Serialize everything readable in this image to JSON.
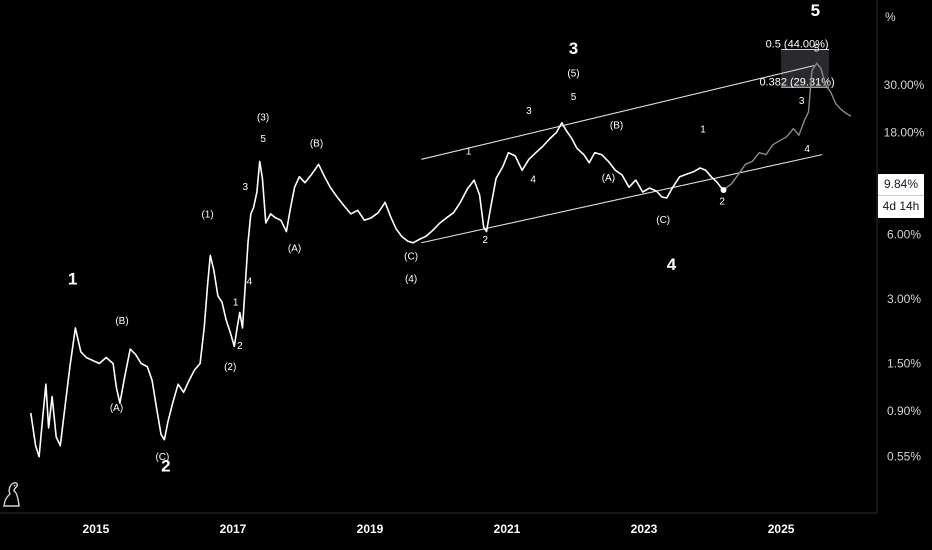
{
  "scale_unit": "%",
  "last_value": "9.84%",
  "countdown": "4d 14h",
  "colors": {
    "background": "#000000",
    "price_line": "#ffffff",
    "projection_line": "#8a8a8a",
    "fib_zone": "#2a2a2e"
  },
  "chart_data": {
    "type": "line",
    "title": "",
    "xlabel": "",
    "ylabel": "",
    "y_scale": "log",
    "grid": false,
    "x_ticks": [
      "2015",
      "2017",
      "2019",
      "2021",
      "2023",
      "2025"
    ],
    "y_ticks": [
      "30.00%",
      "18.00%",
      "6.00%",
      "3.00%",
      "1.50%",
      "0.90%",
      "0.55%"
    ],
    "x_range": [
      2013.6,
      2026.4
    ],
    "y_range": [
      0.3,
      75
    ],
    "series": [
      {
        "style": "solid",
        "points": [
          [
            2014.05,
            0.88
          ],
          [
            2014.12,
            0.62
          ],
          [
            2014.17,
            0.55
          ],
          [
            2014.22,
            0.82
          ],
          [
            2014.27,
            1.2
          ],
          [
            2014.31,
            0.75
          ],
          [
            2014.36,
            1.05
          ],
          [
            2014.42,
            0.68
          ],
          [
            2014.48,
            0.62
          ],
          [
            2014.55,
            0.95
          ],
          [
            2014.62,
            1.45
          ],
          [
            2014.7,
            2.2
          ],
          [
            2014.78,
            1.7
          ],
          [
            2014.86,
            1.6
          ],
          [
            2014.95,
            1.55
          ],
          [
            2015.05,
            1.5
          ],
          [
            2015.15,
            1.6
          ],
          [
            2015.25,
            1.5
          ],
          [
            2015.3,
            1.15
          ],
          [
            2015.35,
            0.98
          ],
          [
            2015.42,
            1.3
          ],
          [
            2015.5,
            1.75
          ],
          [
            2015.58,
            1.65
          ],
          [
            2015.66,
            1.5
          ],
          [
            2015.75,
            1.45
          ],
          [
            2015.82,
            1.25
          ],
          [
            2015.88,
            0.95
          ],
          [
            2015.95,
            0.7
          ],
          [
            2016.0,
            0.66
          ],
          [
            2016.05,
            0.8
          ],
          [
            2016.12,
            0.98
          ],
          [
            2016.2,
            1.2
          ],
          [
            2016.28,
            1.1
          ],
          [
            2016.36,
            1.25
          ],
          [
            2016.44,
            1.4
          ],
          [
            2016.52,
            1.5
          ],
          [
            2016.58,
            2.2
          ],
          [
            2016.63,
            3.5
          ],
          [
            2016.67,
            4.8
          ],
          [
            2016.72,
            4.1
          ],
          [
            2016.78,
            3.1
          ],
          [
            2016.84,
            2.9
          ],
          [
            2016.9,
            2.4
          ],
          [
            2016.96,
            2.1
          ],
          [
            2017.02,
            1.8
          ],
          [
            2017.06,
            2.2
          ],
          [
            2017.1,
            2.6
          ],
          [
            2017.14,
            2.2
          ],
          [
            2017.18,
            3.5
          ],
          [
            2017.22,
            5.5
          ],
          [
            2017.26,
            7.5
          ],
          [
            2017.3,
            8.0
          ],
          [
            2017.35,
            9.5
          ],
          [
            2017.39,
            13.2
          ],
          [
            2017.43,
            11.0
          ],
          [
            2017.48,
            6.8
          ],
          [
            2017.55,
            7.5
          ],
          [
            2017.62,
            7.2
          ],
          [
            2017.7,
            7.0
          ],
          [
            2017.78,
            6.2
          ],
          [
            2017.84,
            8.0
          ],
          [
            2017.9,
            10.0
          ],
          [
            2017.97,
            11.2
          ],
          [
            2018.05,
            10.5
          ],
          [
            2018.15,
            11.5
          ],
          [
            2018.25,
            12.8
          ],
          [
            2018.33,
            11.3
          ],
          [
            2018.42,
            10.0
          ],
          [
            2018.52,
            9.0
          ],
          [
            2018.62,
            8.2
          ],
          [
            2018.72,
            7.5
          ],
          [
            2018.82,
            7.8
          ],
          [
            2018.92,
            7.0
          ],
          [
            2019.02,
            7.2
          ],
          [
            2019.12,
            7.6
          ],
          [
            2019.22,
            8.5
          ],
          [
            2019.3,
            7.3
          ],
          [
            2019.38,
            6.4
          ],
          [
            2019.46,
            5.9
          ],
          [
            2019.55,
            5.6
          ],
          [
            2019.63,
            5.5
          ],
          [
            2019.72,
            5.7
          ],
          [
            2019.82,
            5.9
          ],
          [
            2019.92,
            6.3
          ],
          [
            2020.02,
            6.8
          ],
          [
            2020.12,
            7.2
          ],
          [
            2020.22,
            7.6
          ],
          [
            2020.32,
            8.5
          ],
          [
            2020.42,
            9.8
          ],
          [
            2020.52,
            10.8
          ],
          [
            2020.6,
            9.2
          ],
          [
            2020.66,
            6.5
          ],
          [
            2020.7,
            6.2
          ],
          [
            2020.76,
            8.0
          ],
          [
            2020.84,
            11.0
          ],
          [
            2020.94,
            12.5
          ],
          [
            2021.02,
            14.5
          ],
          [
            2021.12,
            14.0
          ],
          [
            2021.22,
            12.0
          ],
          [
            2021.32,
            13.5
          ],
          [
            2021.42,
            14.5
          ],
          [
            2021.52,
            15.5
          ],
          [
            2021.62,
            16.8
          ],
          [
            2021.72,
            18.0
          ],
          [
            2021.8,
            20.0
          ],
          [
            2021.86,
            18.5
          ],
          [
            2021.94,
            17.0
          ],
          [
            2022.02,
            15.2
          ],
          [
            2022.12,
            14.2
          ],
          [
            2022.2,
            13.0
          ],
          [
            2022.28,
            14.5
          ],
          [
            2022.38,
            14.2
          ],
          [
            2022.48,
            13.2
          ],
          [
            2022.58,
            12.0
          ],
          [
            2022.68,
            11.4
          ],
          [
            2022.78,
            10.0
          ],
          [
            2022.88,
            10.8
          ],
          [
            2022.98,
            9.5
          ],
          [
            2023.08,
            9.9
          ],
          [
            2023.18,
            9.6
          ],
          [
            2023.26,
            9.0
          ],
          [
            2023.33,
            8.9
          ],
          [
            2023.42,
            10.0
          ],
          [
            2023.52,
            11.2
          ],
          [
            2023.62,
            11.5
          ],
          [
            2023.72,
            11.8
          ],
          [
            2023.82,
            12.3
          ],
          [
            2023.9,
            12.0
          ],
          [
            2023.98,
            11.2
          ],
          [
            2024.06,
            10.6
          ],
          [
            2024.12,
            10.0
          ],
          [
            2024.16,
            9.7
          ]
        ]
      },
      {
        "style": "projection",
        "points": [
          [
            2024.16,
            9.7
          ],
          [
            2024.28,
            10.4
          ],
          [
            2024.38,
            11.5
          ],
          [
            2024.48,
            12.8
          ],
          [
            2024.58,
            13.2
          ],
          [
            2024.68,
            14.5
          ],
          [
            2024.78,
            14.2
          ],
          [
            2024.88,
            15.8
          ],
          [
            2024.98,
            16.5
          ],
          [
            2025.08,
            17.2
          ],
          [
            2025.18,
            18.8
          ],
          [
            2025.26,
            17.5
          ],
          [
            2025.34,
            20.5
          ],
          [
            2025.4,
            22.5
          ],
          [
            2025.45,
            35.0
          ],
          [
            2025.52,
            38.0
          ],
          [
            2025.58,
            36.0
          ],
          [
            2025.65,
            30.0
          ],
          [
            2025.72,
            28.0
          ],
          [
            2025.8,
            24.5
          ],
          [
            2025.88,
            23.0
          ],
          [
            2025.96,
            22.0
          ],
          [
            2026.02,
            21.5
          ]
        ]
      }
    ],
    "trendlines": [
      {
        "name": "channel-upper",
        "from": [
          2019.75,
          13.5
        ],
        "to": [
          2025.48,
          37.0
        ]
      },
      {
        "name": "channel-lower",
        "from": [
          2019.75,
          5.5
        ],
        "to": [
          2025.6,
          14.2
        ]
      }
    ],
    "fib_levels": [
      {
        "label": "0.5 (44.00%)",
        "value": 44.0,
        "from": 2025.0,
        "to": 2025.7
      },
      {
        "label": "0.382 (29.31%)",
        "value": 29.31,
        "from": 2025.0,
        "to": 2025.7
      }
    ],
    "annotations": [
      {
        "text": "1",
        "x": 2014.66,
        "y": 3.5,
        "size": "big"
      },
      {
        "text": "2",
        "x": 2016.02,
        "y": 0.47,
        "size": "big"
      },
      {
        "text": "3",
        "x": 2021.97,
        "y": 42.0,
        "size": "big"
      },
      {
        "text": "4",
        "x": 2023.4,
        "y": 4.1,
        "size": "big"
      },
      {
        "text": "5",
        "x": 2025.5,
        "y": 63.0,
        "size": "big"
      },
      {
        "text": "(B)",
        "x": 2015.38,
        "y": 2.3,
        "size": "small"
      },
      {
        "text": "(A)",
        "x": 2015.3,
        "y": 0.9,
        "size": "small"
      },
      {
        "text": "(C)",
        "x": 2015.97,
        "y": 0.53,
        "size": "small"
      },
      {
        "text": "(1)",
        "x": 2016.63,
        "y": 7.2,
        "size": "small"
      },
      {
        "text": "(2)",
        "x": 2016.96,
        "y": 1.4,
        "size": "small"
      },
      {
        "text": "1",
        "x": 2017.04,
        "y": 2.8,
        "size": "small"
      },
      {
        "text": "2",
        "x": 2017.1,
        "y": 1.75,
        "size": "small"
      },
      {
        "text": "3",
        "x": 2017.18,
        "y": 9.7,
        "size": "small"
      },
      {
        "text": "4",
        "x": 2017.24,
        "y": 3.5,
        "size": "small"
      },
      {
        "text": "(3)",
        "x": 2017.44,
        "y": 20.5,
        "size": "small"
      },
      {
        "text": "5",
        "x": 2017.44,
        "y": 16.3,
        "size": "small"
      },
      {
        "text": "(A)",
        "x": 2017.9,
        "y": 5.0,
        "size": "small"
      },
      {
        "text": "(B)",
        "x": 2018.22,
        "y": 15.5,
        "size": "small"
      },
      {
        "text": "(C)",
        "x": 2019.6,
        "y": 4.6,
        "size": "small"
      },
      {
        "text": "(4)",
        "x": 2019.6,
        "y": 3.6,
        "size": "small"
      },
      {
        "text": "1",
        "x": 2020.44,
        "y": 14.2,
        "size": "small"
      },
      {
        "text": "2",
        "x": 2020.68,
        "y": 5.5,
        "size": "small"
      },
      {
        "text": "3",
        "x": 2021.32,
        "y": 22.0,
        "size": "small"
      },
      {
        "text": "4",
        "x": 2021.38,
        "y": 10.5,
        "size": "small"
      },
      {
        "text": "(5)",
        "x": 2021.97,
        "y": 33.0,
        "size": "small"
      },
      {
        "text": "5",
        "x": 2021.97,
        "y": 25.5,
        "size": "small"
      },
      {
        "text": "(B)",
        "x": 2022.6,
        "y": 18.8,
        "size": "small"
      },
      {
        "text": "(A)",
        "x": 2022.48,
        "y": 10.7,
        "size": "small"
      },
      {
        "text": "(C)",
        "x": 2023.28,
        "y": 6.8,
        "size": "small"
      },
      {
        "text": "1",
        "x": 2023.86,
        "y": 18.0,
        "size": "small"
      },
      {
        "text": "2",
        "x": 2024.14,
        "y": 8.3,
        "size": "small"
      },
      {
        "text": "3",
        "x": 2025.3,
        "y": 24.5,
        "size": "small"
      },
      {
        "text": "4",
        "x": 2025.38,
        "y": 14.6,
        "size": "small"
      },
      {
        "text": "5",
        "x": 2025.52,
        "y": 43.0,
        "size": "small"
      }
    ]
  }
}
